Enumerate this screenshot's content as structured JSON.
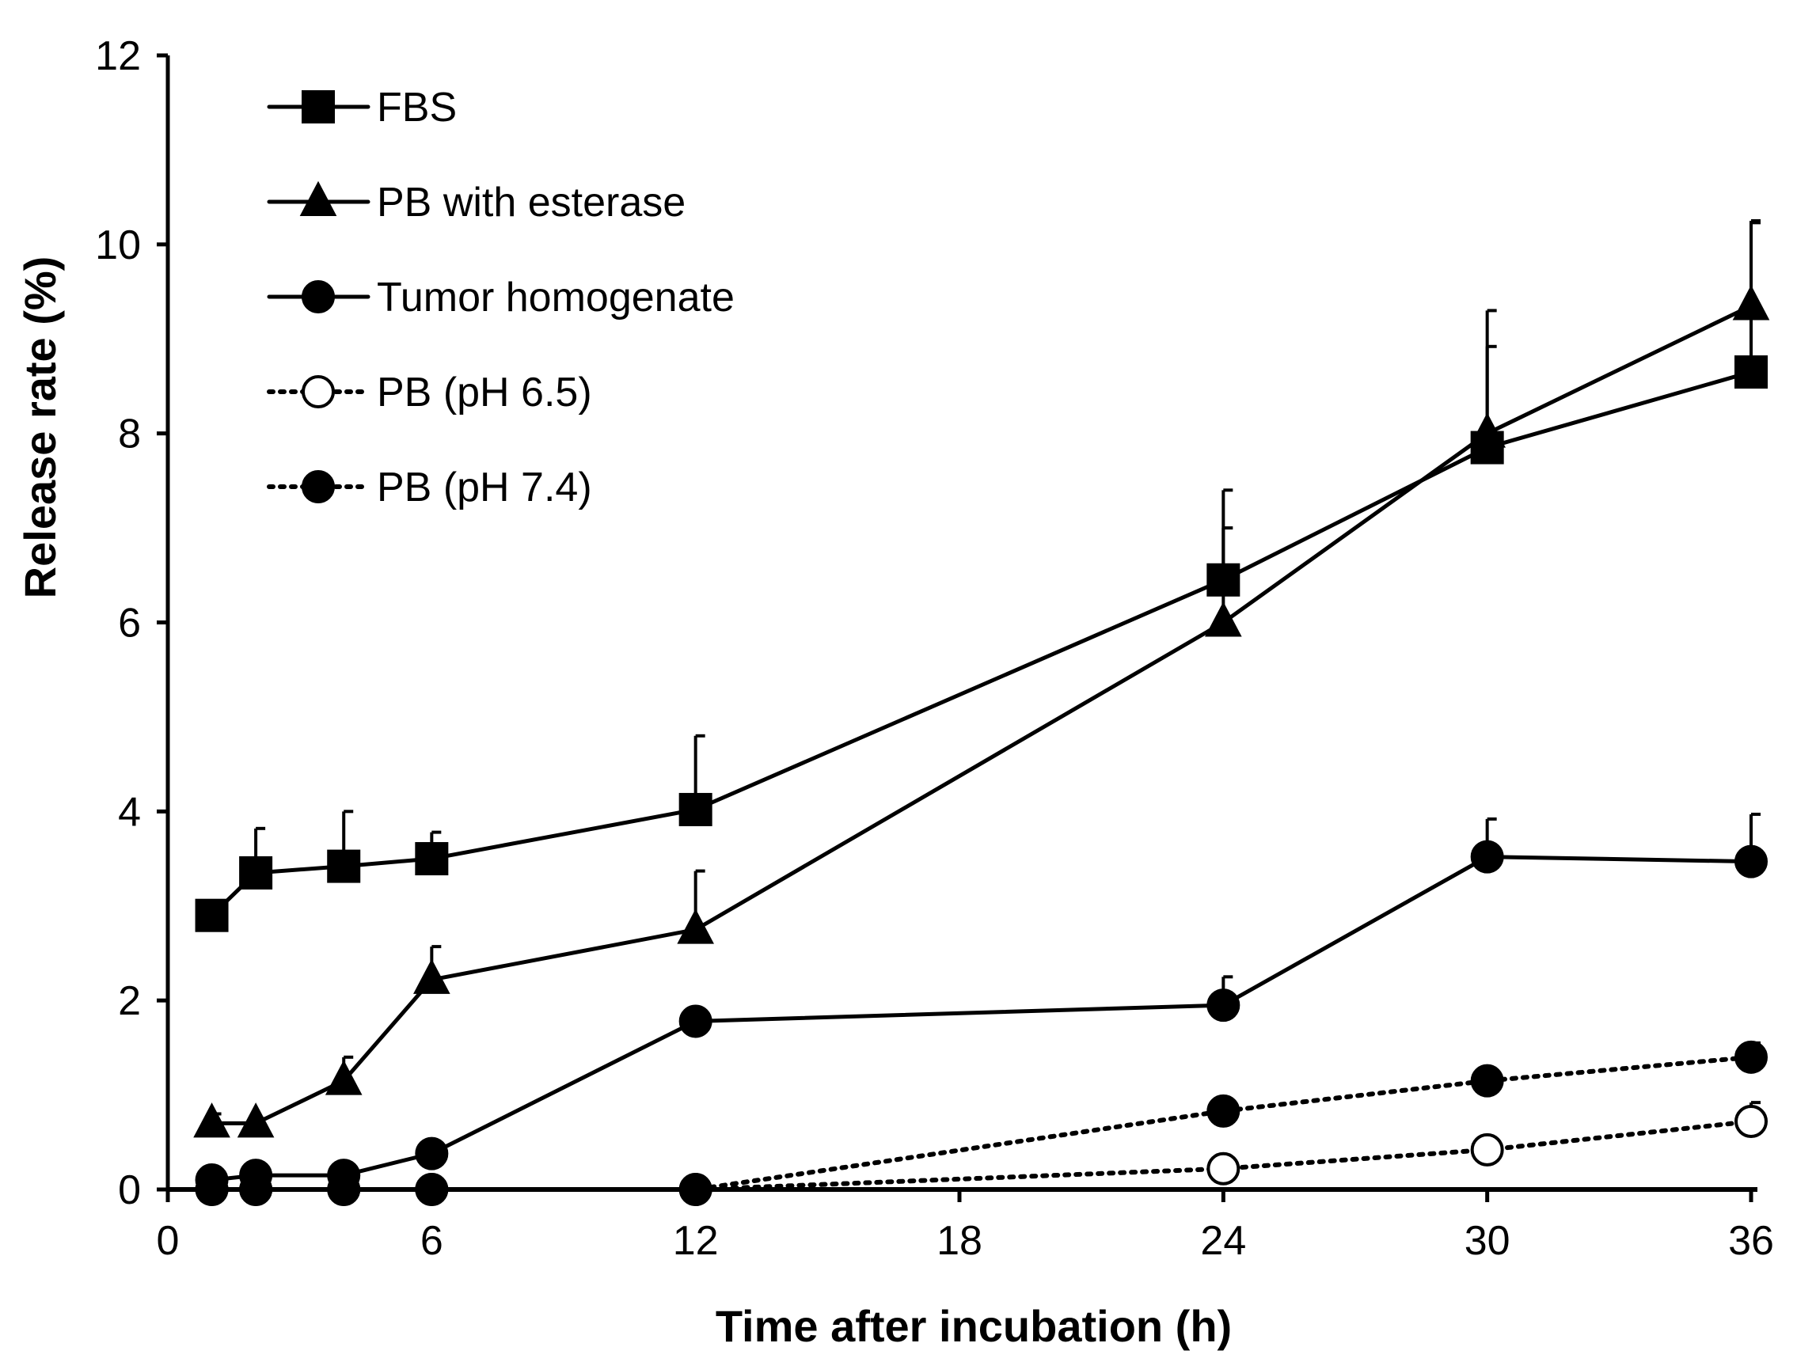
{
  "chart_data": {
    "type": "line",
    "title": "",
    "xlabel": "Time after incubation (h)",
    "ylabel": "Release rate (%)",
    "xlim": [
      0,
      36
    ],
    "ylim": [
      0,
      12
    ],
    "grid": false,
    "legend_position": "top-left",
    "x_ticks": [
      {
        "value": 0,
        "label": "0"
      },
      {
        "value": 6,
        "label": "6"
      },
      {
        "value": 12,
        "label": "12"
      },
      {
        "value": 18,
        "label": "18"
      },
      {
        "value": 24,
        "label": "24"
      },
      {
        "value": 30,
        "label": "30"
      },
      {
        "value": 36,
        "label": "36"
      }
    ],
    "y_ticks": [
      {
        "value": 0,
        "label": "0"
      },
      {
        "value": 2,
        "label": "2"
      },
      {
        "value": 4,
        "label": "4"
      },
      {
        "value": 6,
        "label": "6"
      },
      {
        "value": 8,
        "label": "8"
      },
      {
        "value": 10,
        "label": "10"
      },
      {
        "value": 12,
        "label": "12"
      }
    ],
    "series": [
      {
        "name": "FBS",
        "marker": "square",
        "filled": true,
        "line_style": "solid",
        "color": "#000000",
        "x": [
          1,
          2,
          4,
          6,
          12,
          24,
          30,
          36
        ],
        "values": [
          2.9,
          3.35,
          3.42,
          3.5,
          4.02,
          6.45,
          7.85,
          8.65
        ],
        "errors": [
          0.12,
          0.47,
          0.58,
          0.28,
          0.78,
          0.95,
          1.45,
          1.6
        ]
      },
      {
        "name": "PB with esterase",
        "marker": "triangle",
        "filled": true,
        "line_style": "solid",
        "color": "#000000",
        "x": [
          1,
          2,
          4,
          6,
          12,
          24,
          30,
          36
        ],
        "values": [
          0.7,
          0.7,
          1.15,
          2.22,
          2.75,
          6.0,
          8.0,
          9.35
        ],
        "errors": [
          0.1,
          0.05,
          0.25,
          0.35,
          0.62,
          1.0,
          0.92,
          0.88
        ]
      },
      {
        "name": "Tumor homogenate",
        "marker": "circle",
        "filled": true,
        "line_style": "solid",
        "color": "#000000",
        "x": [
          1,
          2,
          4,
          6,
          12,
          24,
          30,
          36
        ],
        "values": [
          0.1,
          0.15,
          0.15,
          0.38,
          1.78,
          1.95,
          3.52,
          3.47
        ],
        "errors": [
          0.02,
          0.03,
          0.03,
          0.05,
          0.08,
          0.3,
          0.4,
          0.5
        ]
      },
      {
        "name": "PB (pH 6.5)",
        "marker": "circle",
        "filled": false,
        "line_style": "dotted",
        "color": "#000000",
        "x": [
          1,
          2,
          4,
          6,
          12,
          24,
          30,
          36
        ],
        "values": [
          0.0,
          0.0,
          0.0,
          0.0,
          0.0,
          0.22,
          0.42,
          0.72
        ],
        "errors": [
          0,
          0,
          0,
          0,
          0,
          0.05,
          0.07,
          0.2
        ]
      },
      {
        "name": "PB (pH 7.4)",
        "marker": "circle",
        "filled": true,
        "line_style": "dotted",
        "color": "#000000",
        "x": [
          1,
          2,
          4,
          6,
          12,
          24,
          30,
          36
        ],
        "values": [
          0.0,
          0.0,
          0.0,
          0.0,
          0.0,
          0.83,
          1.15,
          1.4
        ],
        "errors": [
          0,
          0,
          0,
          0,
          0,
          0.08,
          0.1,
          0.15
        ]
      }
    ]
  }
}
